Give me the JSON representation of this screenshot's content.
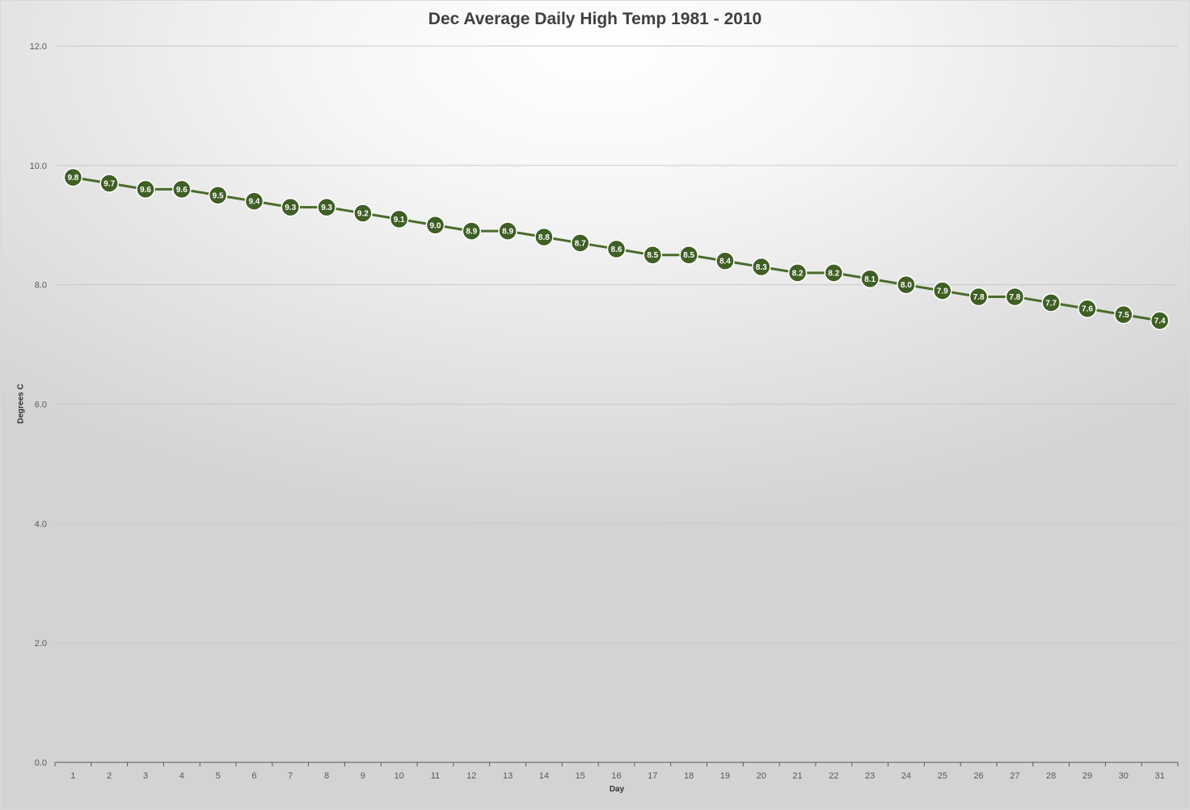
{
  "chart_data": {
    "type": "line",
    "title": "Dec Average Daily High Temp 1981 - 2010",
    "xlabel": "Day",
    "ylabel": "Degrees C",
    "ylim": [
      0,
      12
    ],
    "y_ticks": [
      "0.0",
      "2.0",
      "4.0",
      "6.0",
      "8.0",
      "10.0",
      "12.0"
    ],
    "grid": true,
    "legend": "none",
    "x": [
      1,
      2,
      3,
      4,
      5,
      6,
      7,
      8,
      9,
      10,
      11,
      12,
      13,
      14,
      15,
      16,
      17,
      18,
      19,
      20,
      21,
      22,
      23,
      24,
      25,
      26,
      27,
      28,
      29,
      30,
      31
    ],
    "series": [
      {
        "color": "#4a6b2a",
        "values": [
          9.8,
          9.7,
          9.6,
          9.6,
          9.5,
          9.4,
          9.3,
          9.3,
          9.2,
          9.1,
          9.0,
          8.9,
          8.9,
          8.8,
          8.7,
          8.6,
          8.5,
          8.5,
          8.4,
          8.3,
          8.2,
          8.2,
          8.1,
          8.0,
          7.9,
          7.8,
          7.8,
          7.7,
          7.6,
          7.5,
          7.4
        ],
        "labels": [
          "9.8",
          "9.7",
          "9.6",
          "9.6",
          "9.5",
          "9.4",
          "9.3",
          "9.3",
          "9.2",
          "9.1",
          "9.0",
          "8.9",
          "8.9",
          "8.8",
          "8.7",
          "8.6",
          "8.5",
          "8.5",
          "8.4",
          "8.3",
          "8.2",
          "8.2",
          "8.1",
          "8.0",
          "7.9",
          "7.8",
          "7.8",
          "7.7",
          "7.6",
          "7.5",
          "7.4"
        ]
      }
    ],
    "colors": {
      "gridline": "#c8c8c8",
      "axis": "#595959",
      "marker_fill": "#3f5f25",
      "marker_stroke": "#ffffff"
    }
  }
}
